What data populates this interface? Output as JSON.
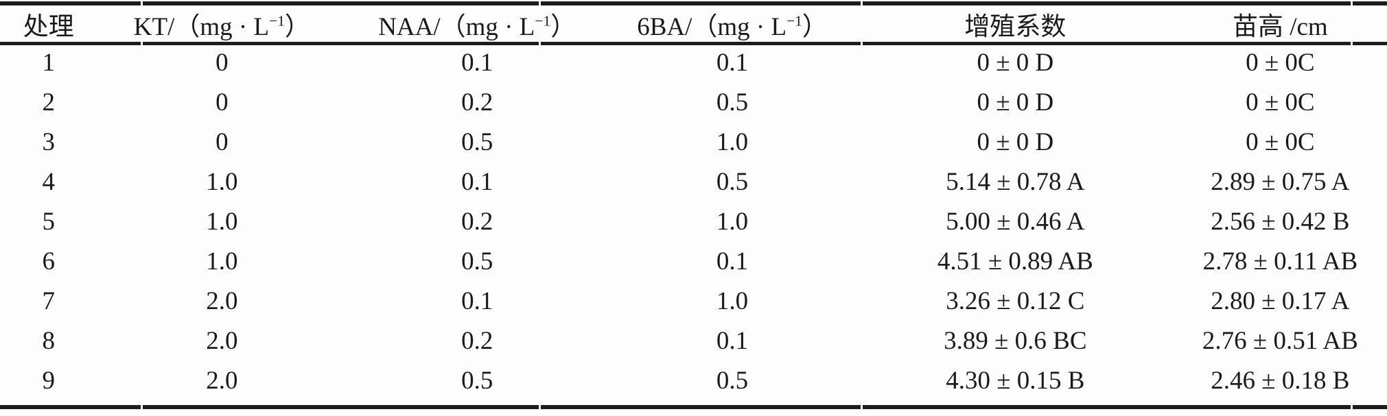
{
  "page": {
    "background_color": "#fdfdfd",
    "rule_color": "#1c1c1c",
    "text_color": "#1a1a1a"
  },
  "table": {
    "columns": [
      {
        "label": "处理",
        "sup": "",
        "tail": ""
      },
      {
        "label": "KT/（mg · L",
        "sup": "−1",
        "tail": "）"
      },
      {
        "label": "NAA/（mg · L",
        "sup": "−1",
        "tail": "）"
      },
      {
        "label": "6BA/（mg · L",
        "sup": "−1",
        "tail": "）"
      },
      {
        "label": "增殖系数",
        "sup": "",
        "tail": ""
      },
      {
        "label": "苗高 /cm",
        "sup": "",
        "tail": ""
      }
    ],
    "rows": [
      {
        "cells": [
          "1",
          "0",
          "0.1",
          "0.1",
          "0 ± 0 D",
          "0 ± 0C"
        ]
      },
      {
        "cells": [
          "2",
          "0",
          "0.2",
          "0.5",
          "0 ± 0 D",
          "0 ± 0C"
        ]
      },
      {
        "cells": [
          "3",
          "0",
          "0.5",
          "1.0",
          "0 ± 0 D",
          "0 ± 0C"
        ]
      },
      {
        "cells": [
          "4",
          "1.0",
          "0.1",
          "0.5",
          "5.14 ± 0.78 A",
          "2.89 ± 0.75 A"
        ]
      },
      {
        "cells": [
          "5",
          "1.0",
          "0.2",
          "1.0",
          "5.00 ± 0.46 A",
          "2.56 ± 0.42 B"
        ]
      },
      {
        "cells": [
          "6",
          "1.0",
          "0.5",
          "0.1",
          "4.51 ± 0.89 AB",
          "2.78 ± 0.11 AB"
        ]
      },
      {
        "cells": [
          "7",
          "2.0",
          "0.1",
          "1.0",
          "3.26 ± 0.12 C",
          "2.80 ± 0.17 A"
        ]
      },
      {
        "cells": [
          "8",
          "2.0",
          "0.2",
          "0.1",
          "3.89 ± 0.6 BC",
          "2.76 ± 0.51 AB"
        ]
      },
      {
        "cells": [
          "9",
          "2.0",
          "0.5",
          "0.5",
          "4.30 ± 0.15 B",
          "2.46 ± 0.18 B"
        ]
      }
    ]
  }
}
